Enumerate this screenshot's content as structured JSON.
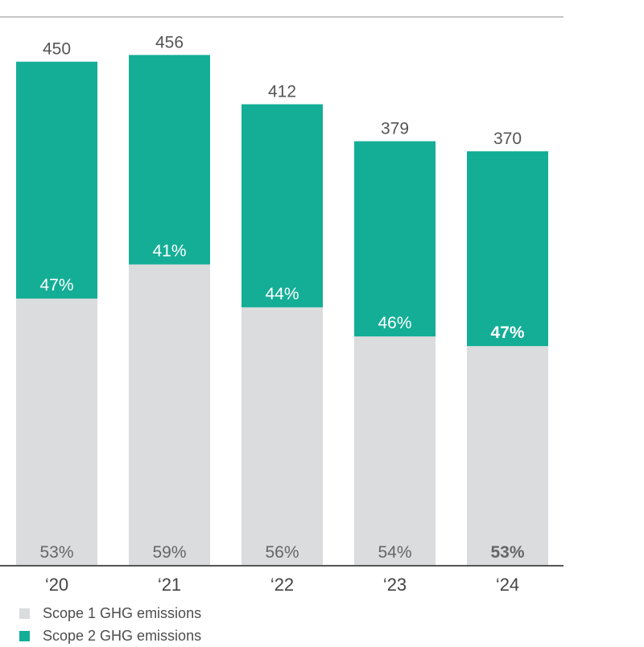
{
  "chart_data": {
    "type": "bar",
    "stacked": true,
    "categories": [
      "‘20",
      "‘21",
      "‘22",
      "‘23",
      "‘24"
    ],
    "totals": [
      450,
      456,
      412,
      379,
      370
    ],
    "series": [
      {
        "name": "Scope 1 GHG emissions",
        "color": "#dadcde",
        "percent_labels": [
          "53%",
          "59%",
          "56%",
          "54%",
          "53%"
        ],
        "values": [
          238.5,
          269.0,
          230.7,
          204.7,
          196.1
        ]
      },
      {
        "name": "Scope 2 GHG emissions",
        "color": "#14ae96",
        "percent_labels": [
          "47%",
          "41%",
          "44%",
          "46%",
          "47%"
        ],
        "values": [
          211.5,
          187.0,
          181.3,
          174.3,
          173.9
        ]
      }
    ],
    "highlight_category_index": 4,
    "ylim": [
      0,
      490
    ],
    "grid": false,
    "legend_position": "bottom-left"
  }
}
